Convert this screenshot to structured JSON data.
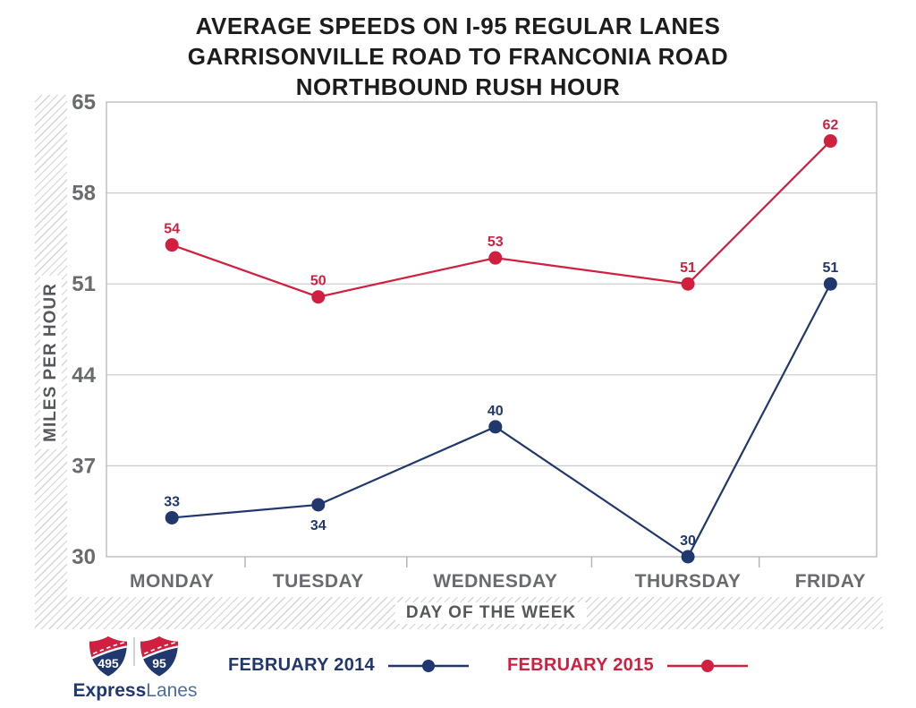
{
  "title": {
    "line1": "AVERAGE SPEEDS ON I-95 REGULAR LANES",
    "line2": "GARRISONVILLE ROAD TO FRANCONIA ROAD",
    "line3": "NORTHBOUND RUSH HOUR"
  },
  "chart_data": {
    "type": "line",
    "categories": [
      "MONDAY",
      "TUESDAY",
      "WEDNESDAY",
      "THURSDAY",
      "FRIDAY"
    ],
    "series": [
      {
        "name": "FEBRUARY 2014",
        "color": "#21386E",
        "values": [
          33,
          34,
          40,
          30,
          51
        ],
        "label_positions": [
          "above",
          "below",
          "above",
          "above",
          "above"
        ]
      },
      {
        "name": "FEBRUARY 2015",
        "color": "#D01F3F",
        "values": [
          54,
          50,
          53,
          51,
          62
        ],
        "label_positions": [
          "above",
          "above",
          "above",
          "above",
          "above"
        ]
      }
    ],
    "xlabel": "DAY OF THE WEEK",
    "ylabel": "MILES PER HOUR",
    "ylim": [
      30,
      65
    ],
    "yticks": [
      30,
      37,
      44,
      51,
      58,
      65
    ],
    "grid": "horizontal",
    "legend_position": "bottom"
  },
  "logo": {
    "shield_1": "495",
    "shield_2": "95",
    "brand_bold": "Express",
    "brand_light": "Lanes"
  },
  "colors": {
    "navy": "#21386E",
    "red": "#D01F3F",
    "axis_text": "#6A6B6E",
    "axis_title": "#56575B",
    "gridline": "#C9CACC",
    "border": "#B5B6B8",
    "hatch": "#D4D4D4",
    "brand_light_blue": "#4C6F9E"
  }
}
